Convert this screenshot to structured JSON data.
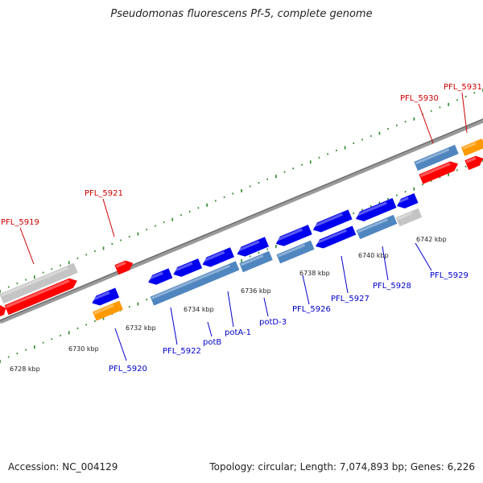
{
  "title": "Pseudomonas fluorescens Pf-5, complete genome",
  "footer": {
    "accession": "Accession: NC_004129",
    "stats": "Topology: circular; Length: 7,074,893 bp; Genes: 6,226"
  },
  "colors": {
    "backbone": "#8c8c8c",
    "tick_dots": "#2a8a2a",
    "forward_gene": "#ff0000",
    "reverse_gene": "#0000ee",
    "forward_label": "#cc0000",
    "reverse_label": "#0000cc",
    "cds_blue": "#4f86c0",
    "cds_orange": "#ff9900",
    "cds_gray": "#c4c4c4"
  },
  "tick_labels": [
    "6728 kbp",
    "6730 kbp",
    "6732 kbp",
    "6734 kbp",
    "6736 kbp",
    "6738 kbp",
    "6740 kbp",
    "6742 kbp"
  ],
  "forward_labels": [
    "PFL_5919",
    "PFL_5921",
    "PFL_5930",
    "PFL_5931"
  ],
  "reverse_labels": [
    "PFL_5920",
    "PFL_5922",
    "potB",
    "potA-1",
    "potD-3",
    "PFL_5926",
    "PFL_5927",
    "PFL_5928",
    "PFL_5929"
  ]
}
